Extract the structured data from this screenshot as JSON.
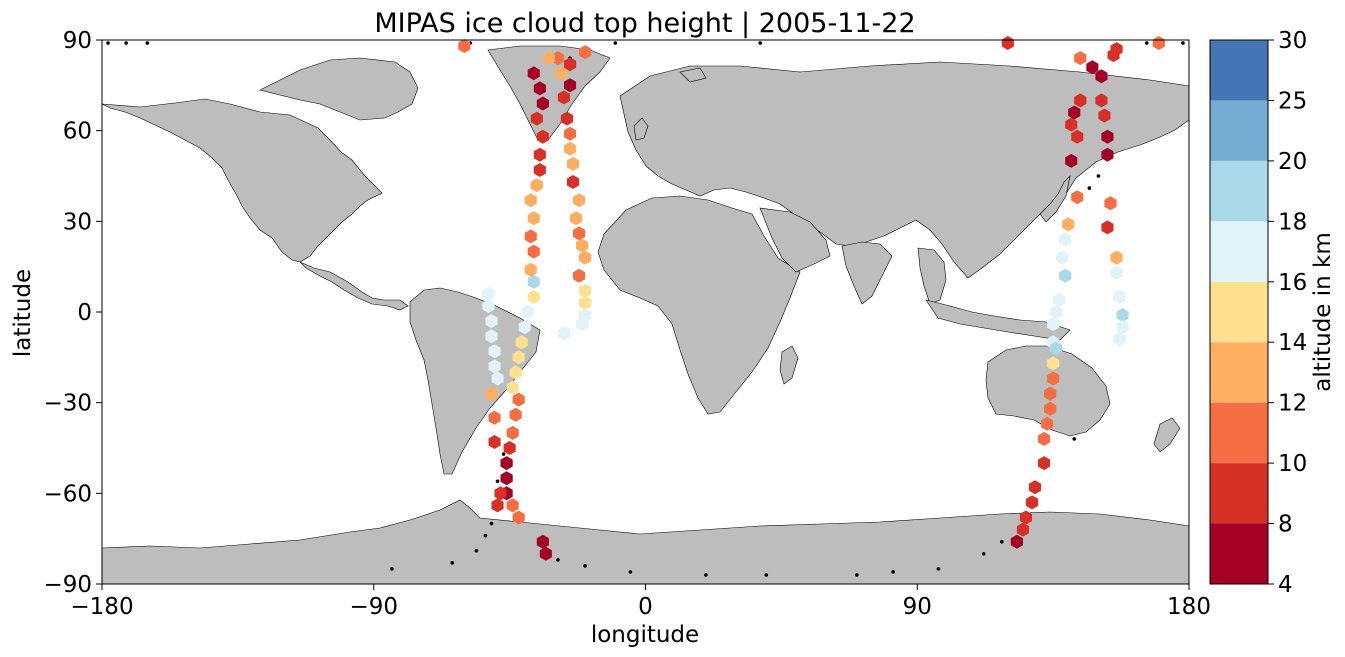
{
  "title": "MIPAS ice cloud top height | 2005-11-22",
  "axes": {
    "xlabel": "longitude",
    "ylabel": "latitude",
    "xticks": [
      -180,
      -90,
      0,
      90,
      180
    ],
    "yticks": [
      -90,
      -60,
      -30,
      0,
      30,
      60,
      90
    ],
    "xtick_labels": [
      "−180",
      "−90",
      "0",
      "90",
      "180"
    ],
    "ytick_labels": [
      "−90",
      "−60",
      "−30",
      "0",
      "30",
      "60",
      "90"
    ],
    "xlim": [
      -180,
      180
    ],
    "ylim": [
      -90,
      90
    ]
  },
  "colorbar": {
    "label": "altitude in km",
    "levels": [
      4,
      8,
      10,
      12,
      14,
      16,
      18,
      20,
      25,
      30
    ],
    "tick_labels": [
      "4",
      "8",
      "10",
      "12",
      "14",
      "16",
      "18",
      "20",
      "25",
      "30"
    ],
    "colors": [
      "#a50026",
      "#d73027",
      "#f46d43",
      "#fdae61",
      "#fee090",
      "#e0f3f8",
      "#abd9e9",
      "#74add1",
      "#4575b4",
      "#313695"
    ]
  },
  "map_colors": {
    "land": "#bdbdbd",
    "ocean": "#ffffff",
    "coast": "#000000"
  },
  "chart_data": {
    "type": "scatter",
    "title": "MIPAS ice cloud top height | 2005-11-22",
    "xlabel": "longitude",
    "ylabel": "latitude",
    "xlim": [
      -180,
      180
    ],
    "ylim": [
      -90,
      90
    ],
    "value_label": "altitude in km",
    "series": [
      {
        "values": [
          {
            "lon": -37,
            "lat": 79,
            "alt": 7
          },
          {
            "lon": -35,
            "lat": 74,
            "alt": 7
          },
          {
            "lon": -34,
            "lat": 69,
            "alt": 7
          },
          {
            "lon": -36,
            "lat": 64,
            "alt": 8
          },
          {
            "lon": -34,
            "lat": 58,
            "alt": 9
          },
          {
            "lon": -35,
            "lat": 52,
            "alt": 9
          },
          {
            "lon": -35,
            "lat": 47,
            "alt": 9
          },
          {
            "lon": -36,
            "lat": 42,
            "alt": 13
          },
          {
            "lon": -38,
            "lat": 37,
            "alt": 13
          },
          {
            "lon": -37,
            "lat": 31,
            "alt": 12
          },
          {
            "lon": -38,
            "lat": 25,
            "alt": 11
          },
          {
            "lon": -37,
            "lat": 20,
            "alt": 11
          },
          {
            "lon": -38,
            "lat": 14,
            "alt": 13
          },
          {
            "lon": -37,
            "lat": 10,
            "alt": 19
          },
          {
            "lon": -37,
            "lat": 5,
            "alt": 15
          },
          {
            "lon": -39,
            "lat": 0,
            "alt": 17
          },
          {
            "lon": -40,
            "lat": -5,
            "alt": 17
          },
          {
            "lon": -41,
            "lat": -10,
            "alt": 15
          },
          {
            "lon": -42,
            "lat": -15,
            "alt": 15
          },
          {
            "lon": -43,
            "lat": -20,
            "alt": 15
          },
          {
            "lon": -44,
            "lat": -25,
            "alt": 15
          },
          {
            "lon": -42,
            "lat": -29,
            "alt": 11
          },
          {
            "lon": -43,
            "lat": -34,
            "alt": 11
          },
          {
            "lon": -44,
            "lat": -40,
            "alt": 11
          },
          {
            "lon": -45,
            "lat": -45,
            "alt": 9
          },
          {
            "lon": -46,
            "lat": -50,
            "alt": 7
          },
          {
            "lon": -46,
            "lat": -55,
            "alt": 7
          },
          {
            "lon": -46,
            "lat": -60,
            "alt": 7
          },
          {
            "lon": -44,
            "lat": -64,
            "alt": 10
          },
          {
            "lon": -42,
            "lat": -68,
            "alt": 10
          },
          {
            "lon": -34,
            "lat": -76,
            "alt": 7
          },
          {
            "lon": -33,
            "lat": -80,
            "alt": 7
          },
          {
            "lon": -52,
            "lat": 6,
            "alt": 17
          },
          {
            "lon": -52,
            "lat": 2,
            "alt": 17
          },
          {
            "lon": -51,
            "lat": -3,
            "alt": 17
          },
          {
            "lon": -51,
            "lat": -8,
            "alt": 17
          },
          {
            "lon": -50,
            "lat": -13,
            "alt": 17
          },
          {
            "lon": -50,
            "lat": -18,
            "alt": 17
          },
          {
            "lon": -49,
            "lat": -22,
            "alt": 16
          },
          {
            "lon": -51,
            "lat": -27,
            "alt": 13
          },
          {
            "lon": -50,
            "lat": -35,
            "alt": 11
          },
          {
            "lon": -50,
            "lat": -43,
            "alt": 9
          },
          {
            "lon": -48,
            "lat": -60,
            "alt": 9
          },
          {
            "lon": -49,
            "lat": -64,
            "alt": 9
          },
          {
            "lon": -29,
            "lat": 84,
            "alt": 11
          },
          {
            "lon": -32,
            "lat": 84,
            "alt": 13
          },
          {
            "lon": -28,
            "lat": 79,
            "alt": 12
          },
          {
            "lon": -25,
            "lat": 75,
            "alt": 7
          },
          {
            "lon": -27,
            "lat": 71,
            "alt": 8
          },
          {
            "lon": -26,
            "lat": 64,
            "alt": 9
          },
          {
            "lon": -25,
            "lat": 59,
            "alt": 11
          },
          {
            "lon": -25,
            "lat": 54,
            "alt": 12
          },
          {
            "lon": -24,
            "lat": 49,
            "alt": 12
          },
          {
            "lon": -24,
            "lat": 43,
            "alt": 9
          },
          {
            "lon": -22,
            "lat": 37,
            "alt": 13
          },
          {
            "lon": -23,
            "lat": 31,
            "alt": 13
          },
          {
            "lon": -22,
            "lat": 26,
            "alt": 11
          },
          {
            "lon": -21,
            "lat": 22,
            "alt": 13
          },
          {
            "lon": -20,
            "lat": 18,
            "alt": 13
          },
          {
            "lon": -22,
            "lat": 12,
            "alt": 11
          },
          {
            "lon": -20,
            "lat": 7,
            "alt": 15
          },
          {
            "lon": -20,
            "lat": 3,
            "alt": 15
          },
          {
            "lon": -20,
            "lat": -1,
            "alt": 17
          },
          {
            "lon": -21,
            "lat": -4,
            "alt": 17
          },
          {
            "lon": -27,
            "lat": -7,
            "alt": 17
          },
          {
            "lon": -20,
            "lat": 86,
            "alt": 11
          },
          {
            "lon": -25,
            "lat": 82,
            "alt": 9
          },
          {
            "lon": -60,
            "lat": 88,
            "alt": 11
          },
          {
            "lon": 155,
            "lat": 85,
            "alt": 9
          },
          {
            "lon": 144,
            "lat": 84,
            "alt": 11
          },
          {
            "lon": 148,
            "lat": 81,
            "alt": 7
          },
          {
            "lon": 151,
            "lat": 78,
            "alt": 7
          },
          {
            "lon": 144,
            "lat": 70,
            "alt": 9
          },
          {
            "lon": 142,
            "lat": 66,
            "alt": 7
          },
          {
            "lon": 141,
            "lat": 62,
            "alt": 9
          },
          {
            "lon": 143,
            "lat": 58,
            "alt": 9
          },
          {
            "lon": 141,
            "lat": 50,
            "alt": 7
          },
          {
            "lon": 143,
            "lat": 38,
            "alt": 11
          },
          {
            "lon": 140,
            "lat": 29,
            "alt": 13
          },
          {
            "lon": 139,
            "lat": 24,
            "alt": 17
          },
          {
            "lon": 138,
            "lat": 18,
            "alt": 17
          },
          {
            "lon": 139,
            "lat": 12,
            "alt": 19
          },
          {
            "lon": 137,
            "lat": 4,
            "alt": 17
          },
          {
            "lon": 136,
            "lat": 0,
            "alt": 17
          },
          {
            "lon": 135,
            "lat": -4,
            "alt": 17
          },
          {
            "lon": 135,
            "lat": -10,
            "alt": 17
          },
          {
            "lon": 135,
            "lat": -17,
            "alt": 15
          },
          {
            "lon": 135,
            "lat": -22,
            "alt": 11
          },
          {
            "lon": 134,
            "lat": -27,
            "alt": 11
          },
          {
            "lon": 134,
            "lat": -32,
            "alt": 10
          },
          {
            "lon": 133,
            "lat": -37,
            "alt": 10
          },
          {
            "lon": 132,
            "lat": -42,
            "alt": 10
          },
          {
            "lon": 132,
            "lat": -50,
            "alt": 9
          },
          {
            "lon": 129,
            "lat": -58,
            "alt": 9
          },
          {
            "lon": 128,
            "lat": -63,
            "alt": 9
          },
          {
            "lon": 126,
            "lat": -68,
            "alt": 9
          },
          {
            "lon": 125,
            "lat": -72,
            "alt": 9
          },
          {
            "lon": 123,
            "lat": -76,
            "alt": 7
          },
          {
            "lon": 151,
            "lat": 70,
            "alt": 9
          },
          {
            "lon": 152,
            "lat": 65,
            "alt": 9
          },
          {
            "lon": 153,
            "lat": 58,
            "alt": 7
          },
          {
            "lon": 153,
            "lat": 52,
            "alt": 7
          },
          {
            "lon": 154,
            "lat": 36,
            "alt": 11
          },
          {
            "lon": 153,
            "lat": 28,
            "alt": 9
          },
          {
            "lon": 156,
            "lat": 18,
            "alt": 13
          },
          {
            "lon": 156,
            "lat": 13,
            "alt": 17
          },
          {
            "lon": 157,
            "lat": 5,
            "alt": 17
          },
          {
            "lon": 158,
            "lat": -1,
            "alt": 19
          },
          {
            "lon": 158,
            "lat": -5,
            "alt": 17
          },
          {
            "lon": 157,
            "lat": -9,
            "alt": 17
          },
          {
            "lon": 136,
            "lat": -12,
            "alt": 19
          },
          {
            "lon": 120,
            "lat": 89,
            "alt": 9
          },
          {
            "lon": 170,
            "lat": 89,
            "alt": 11
          },
          {
            "lon": 156,
            "lat": 87,
            "alt": 9
          }
        ]
      }
    ],
    "no_cloud_track_points": [
      {
        "lon": -178,
        "lat": 89
      },
      {
        "lon": -172,
        "lat": 89
      },
      {
        "lon": -165,
        "lat": 89
      },
      {
        "lon": -58,
        "lat": 89
      },
      {
        "lon": -25,
        "lat": 84
      },
      {
        "lon": -10,
        "lat": 89
      },
      {
        "lon": 38,
        "lat": 89
      },
      {
        "lon": -84,
        "lat": -85
      },
      {
        "lon": -64,
        "lat": -83
      },
      {
        "lon": -56,
        "lat": -79
      },
      {
        "lon": -53,
        "lat": -74
      },
      {
        "lon": -51,
        "lat": -70
      },
      {
        "lon": -49,
        "lat": -56
      },
      {
        "lon": -47,
        "lat": -47
      },
      {
        "lon": -29,
        "lat": -82
      },
      {
        "lon": -20,
        "lat": -84
      },
      {
        "lon": -5,
        "lat": -86
      },
      {
        "lon": 20,
        "lat": -87
      },
      {
        "lon": 40,
        "lat": -87
      },
      {
        "lon": 70,
        "lat": -87
      },
      {
        "lon": 82,
        "lat": -86
      },
      {
        "lon": 97,
        "lat": -85
      },
      {
        "lon": 112,
        "lat": -80
      },
      {
        "lon": 118,
        "lat": -76
      },
      {
        "lon": 142,
        "lat": -42
      },
      {
        "lon": 147,
        "lat": 41
      },
      {
        "lon": 150,
        "lat": 45
      },
      {
        "lon": 154,
        "lat": 59
      },
      {
        "lon": 166,
        "lat": 89
      },
      {
        "lon": 178,
        "lat": 89
      }
    ]
  }
}
